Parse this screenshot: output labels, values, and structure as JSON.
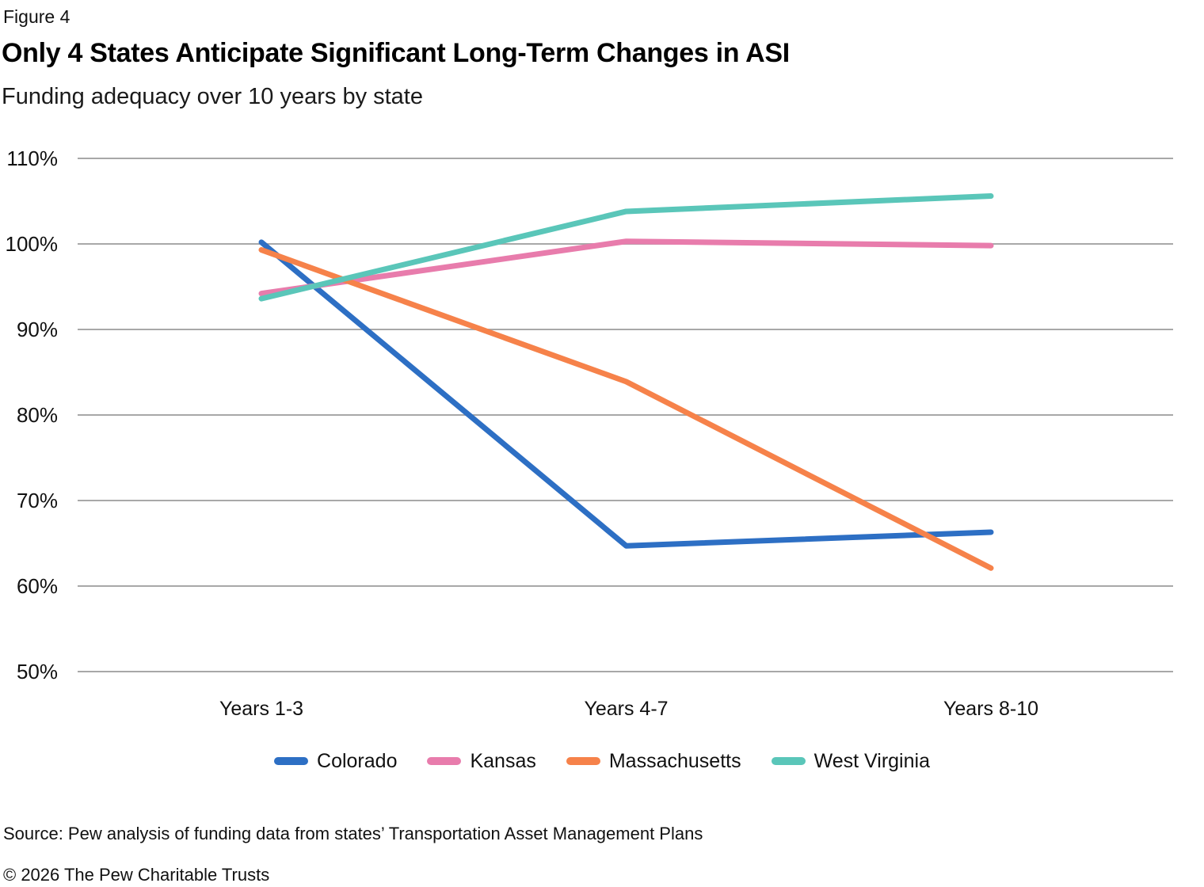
{
  "figure_label": "Figure 4",
  "title": "Only 4 States Anticipate Significant Long-Term Changes in ASI",
  "subtitle": "Funding adequacy over 10 years by state",
  "source": "Source: Pew analysis of funding data from states’ Transportation Asset Management Plans",
  "copyright": "© 2026 The Pew Charitable Trusts",
  "colors": {
    "gridline": "#a8a8a8",
    "text": "#111111",
    "colorado": "#2d6fc4",
    "kansas": "#e87cac",
    "massachusetts": "#f6824a",
    "west_virginia": "#5ac6b9"
  },
  "chart_data": {
    "type": "line",
    "title": "Only 4 States Anticipate Significant Long-Term Changes in ASI",
    "subtitle": "Funding adequacy over 10 years by state",
    "categories": [
      "Years 1-3",
      "Years 4-7",
      "Years 8-10"
    ],
    "series": [
      {
        "name": "Colorado",
        "color": "#2d6fc4",
        "values": [
          100.2,
          64.7,
          66.3
        ]
      },
      {
        "name": "Kansas",
        "color": "#e87cac",
        "values": [
          94.2,
          100.3,
          99.8
        ]
      },
      {
        "name": "Massachusetts",
        "color": "#f6824a",
        "values": [
          99.3,
          83.9,
          62.1
        ]
      },
      {
        "name": "West Virginia",
        "color": "#5ac6b9",
        "values": [
          93.6,
          103.8,
          105.6
        ]
      }
    ],
    "ylabel": "",
    "xlabel": "",
    "ylim": [
      50,
      110
    ],
    "ytick_step": 10,
    "ytick_format": "percent",
    "grid": "horizontal",
    "legend_position": "bottom"
  }
}
